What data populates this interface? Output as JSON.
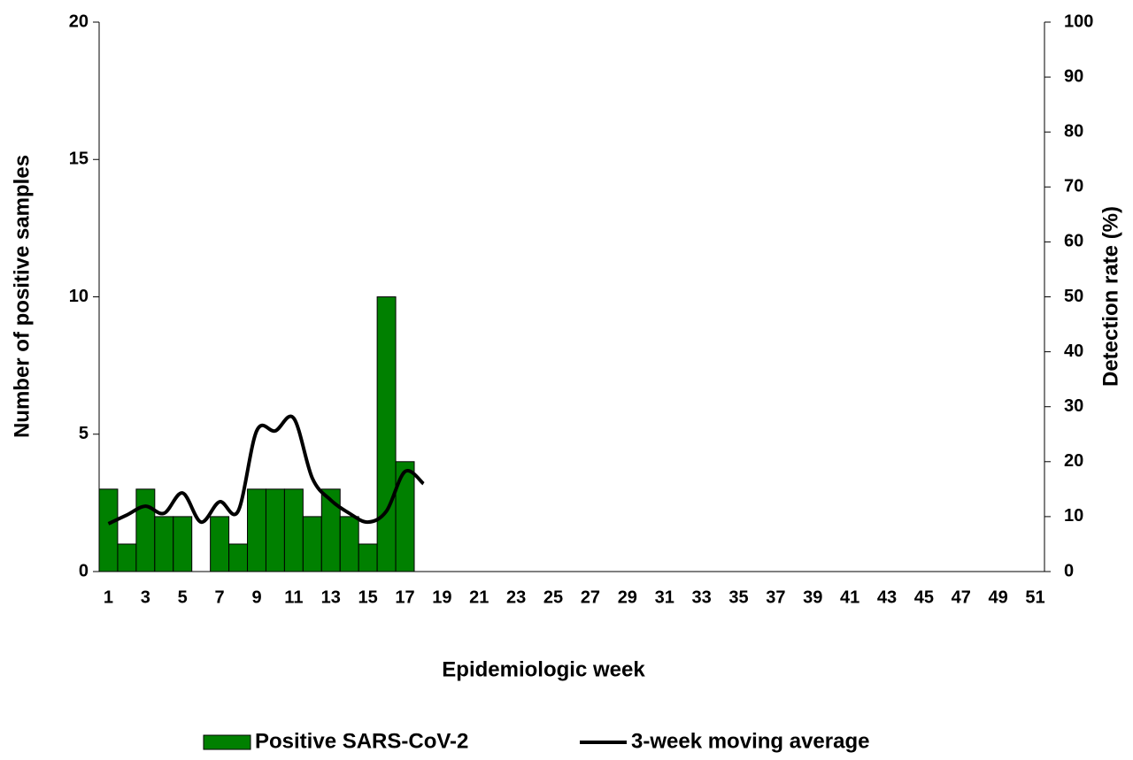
{
  "chart_data": {
    "type": "bar",
    "x_label": "Epidemiologic week",
    "y_label": "Number of positive samples",
    "y2_label": "Detection rate (%)",
    "categories": [
      1,
      null,
      3,
      null,
      5,
      null,
      7,
      null,
      9,
      null,
      11,
      null,
      13,
      null,
      15,
      null,
      17,
      null,
      19,
      null,
      21,
      null,
      23,
      null,
      25,
      null,
      27,
      null,
      29,
      null,
      31,
      null,
      33,
      null,
      35,
      null,
      37,
      null,
      39,
      null,
      41,
      null,
      43,
      null,
      45,
      null,
      47,
      null,
      49,
      null,
      51
    ],
    "ylim": [
      0,
      20
    ],
    "yticks": [
      0,
      5,
      10,
      15,
      20
    ],
    "y2lim": [
      0,
      100
    ],
    "y2ticks": [
      0,
      10,
      20,
      30,
      40,
      50,
      60,
      70,
      80,
      90,
      100
    ],
    "legend": "bottom",
    "series": [
      {
        "name": "Positive SARS-CoV-2",
        "type": "bar",
        "color": "#008000",
        "values": [
          3,
          1,
          3,
          2,
          2,
          0,
          2,
          1,
          3,
          3,
          3,
          2,
          3,
          2,
          1,
          10,
          4,
          null,
          null,
          null,
          null,
          null,
          null,
          null,
          null,
          null,
          null,
          null,
          null,
          null,
          null,
          null,
          null,
          null,
          null,
          null,
          null,
          null,
          null,
          null,
          null,
          null,
          null,
          null,
          null,
          null,
          null,
          null,
          null,
          null,
          null
        ]
      },
      {
        "name": "3-week moving average",
        "type": "line",
        "color": "#000000",
        "axis": "y2",
        "values": [
          8.7,
          10.3,
          11.9,
          10.6,
          14.3,
          9,
          12.7,
          11,
          25.6,
          25.6,
          27.9,
          17,
          13,
          10.6,
          9,
          11,
          18.2,
          16,
          null,
          null,
          null,
          null,
          null,
          null,
          null,
          null,
          null,
          null,
          null,
          null,
          null,
          null,
          null,
          null,
          null,
          null,
          null,
          null,
          null,
          null,
          null,
          null,
          null,
          null,
          null,
          null,
          null,
          null,
          null,
          null,
          null
        ]
      }
    ]
  }
}
